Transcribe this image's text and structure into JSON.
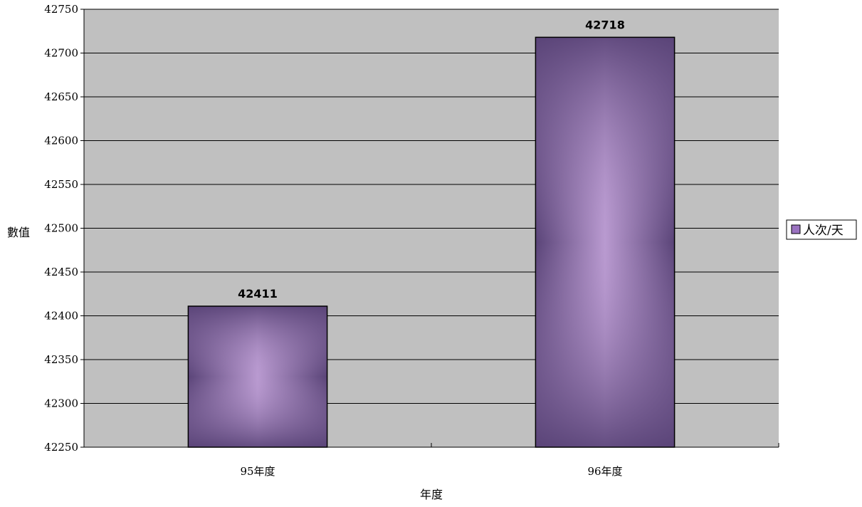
{
  "chart_data": {
    "type": "bar",
    "categories": [
      "95年度",
      "96年度"
    ],
    "series": [
      {
        "name": "人次/天",
        "values": [
          42411,
          42718
        ],
        "color": "#9a72c0"
      }
    ],
    "data_labels": [
      "42411",
      "42718"
    ],
    "xlabel": "年度",
    "ylabel": "數值",
    "ylim": [
      42250,
      42750
    ],
    "yticks": [
      42250,
      42300,
      42350,
      42400,
      42450,
      42500,
      42550,
      42600,
      42650,
      42700,
      42750
    ],
    "grid": true,
    "legend_position": "right",
    "plot_background": "#c0c0c0",
    "bar_dark_color": "#5a4478",
    "bar_light_color": "#b99ad0"
  }
}
